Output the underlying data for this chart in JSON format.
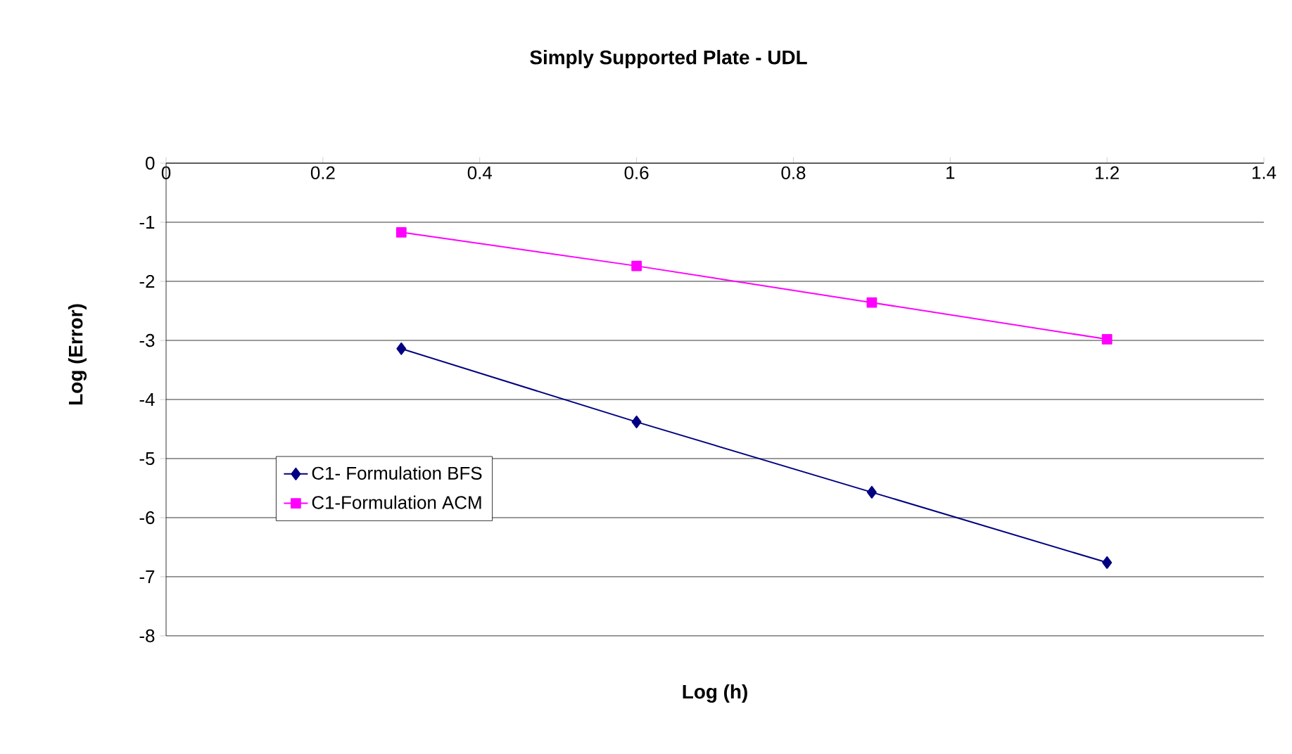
{
  "chart_data": {
    "type": "line",
    "title": "Simply Supported Plate - UDL",
    "xlabel": "Log (h)",
    "ylabel": "Log (Error)",
    "xlim": [
      0,
      1.4
    ],
    "xticks": [
      0,
      0.2,
      0.4,
      0.6,
      0.8,
      1,
      1.2,
      1.4
    ],
    "ylim": [
      -8,
      0
    ],
    "yticks": [
      -8,
      -7,
      -6,
      -5,
      -4,
      -3,
      -2,
      -1,
      0
    ],
    "x": [
      0.3,
      0.6,
      0.9,
      1.2
    ],
    "grid": "y",
    "legend": "bottom left",
    "line_style": "solid",
    "series": [
      {
        "name": "C1- Formulation BFS",
        "color": "#000080",
        "marker": "diamond",
        "values": [
          -3.14,
          -4.38,
          -5.57,
          -6.76
        ]
      },
      {
        "name": "C1-Formulation ACM",
        "color": "#ff00ff",
        "marker": "square",
        "values": [
          -1.17,
          -1.74,
          -2.36,
          -2.98
        ]
      }
    ]
  }
}
